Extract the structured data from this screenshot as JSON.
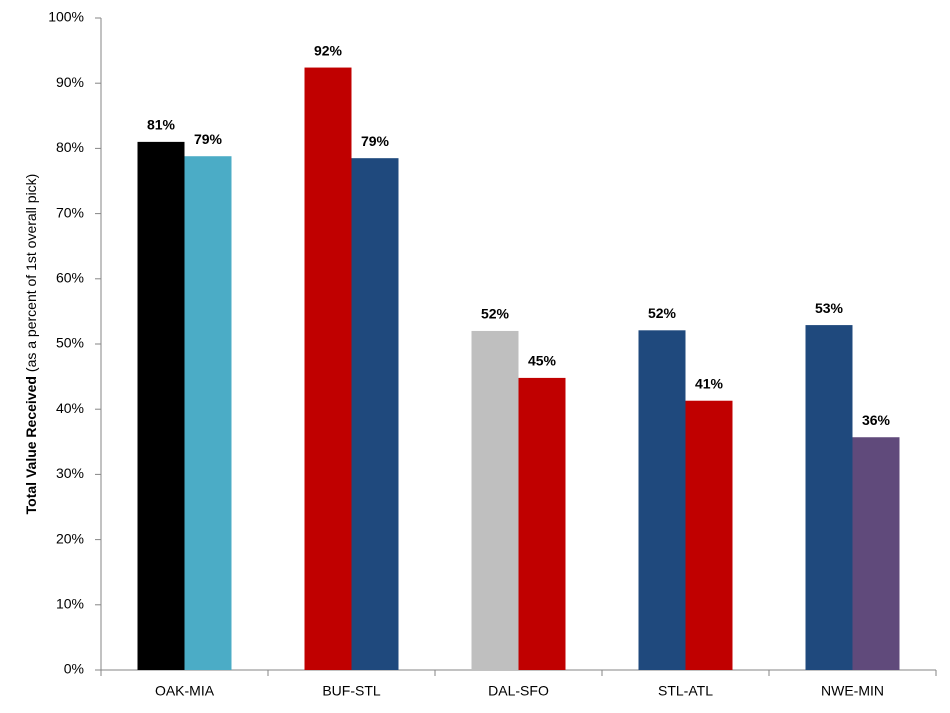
{
  "chart_data": {
    "type": "bar",
    "y_label": "Total Value Received",
    "y_label_note": "(as a percent of 1st overall pick)",
    "categories": [
      "OAK-MIA",
      "BUF-STL",
      "DAL-SFO",
      "STL-ATL",
      "NWE-MIN"
    ],
    "series": [
      {
        "colors": [
          "#000000",
          "#c00000",
          "#bfbfbf",
          "#1f497d",
          "#1f497d"
        ],
        "values": [
          81,
          92.4,
          52,
          52.1,
          52.9
        ],
        "value_labels": [
          "81%",
          "92%",
          "52%",
          "52%",
          "53%"
        ]
      },
      {
        "colors": [
          "#4bacc6",
          "#1f497d",
          "#c00000",
          "#c00000",
          "#604a7b"
        ],
        "values": [
          78.8,
          78.5,
          44.8,
          41.3,
          35.7
        ],
        "value_labels": [
          "79%",
          "79%",
          "45%",
          "41%",
          "36%"
        ]
      }
    ],
    "ylim": [
      0,
      100
    ],
    "yticks": [
      {
        "value": 0,
        "label": "0%"
      },
      {
        "value": 10,
        "label": "10%"
      },
      {
        "value": 20,
        "label": "20%"
      },
      {
        "value": 30,
        "label": "30%"
      },
      {
        "value": 40,
        "label": "40%"
      },
      {
        "value": 50,
        "label": "50%"
      },
      {
        "value": 60,
        "label": "60%"
      },
      {
        "value": 70,
        "label": "70%"
      },
      {
        "value": 80,
        "label": "80%"
      },
      {
        "value": 90,
        "label": "90%"
      },
      {
        "value": 100,
        "label": "100%"
      }
    ],
    "grid": false
  }
}
